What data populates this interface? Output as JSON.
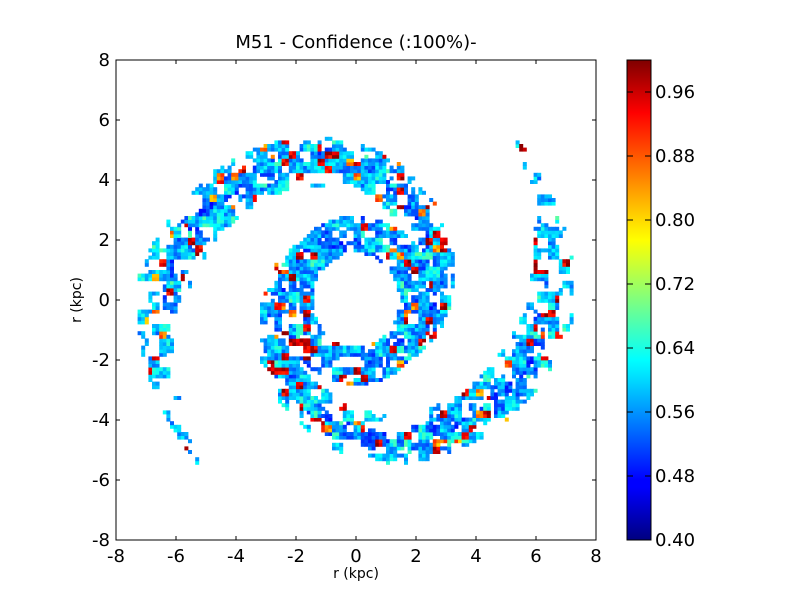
{
  "chart_data": {
    "type": "heatmap",
    "title": "M51 - Confidence (:100%)-",
    "xlabel": "r (kpc)",
    "ylabel": "r (kpc)",
    "xlim": [
      -8,
      8
    ],
    "ylim": [
      -8,
      8
    ],
    "x_ticks": [
      "-8",
      "-6",
      "-4",
      "-2",
      "0",
      "2",
      "4",
      "6",
      "8"
    ],
    "y_ticks": [
      "8",
      "6",
      "4",
      "2",
      "0",
      "-2",
      "-4",
      "-6",
      "-8"
    ],
    "colorbar": {
      "min": 0.4,
      "max": 1.0,
      "colormap": "jet",
      "ticks": [
        "0.96",
        "0.88",
        "0.80",
        "0.72",
        "0.64",
        "0.56",
        "0.48",
        "0.40"
      ]
    },
    "grid": false,
    "colors": {
      "low": "#00007f",
      "mid": "#7fff7f",
      "high": "#7f0000"
    }
  }
}
